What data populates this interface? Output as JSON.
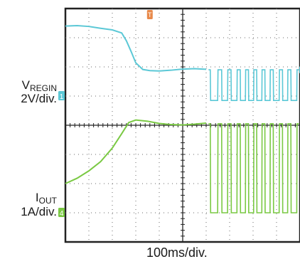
{
  "chart_data": {
    "type": "line",
    "title": "",
    "xlabel": "100ms/div.",
    "xlim": [
      0,
      1000
    ],
    "ylim": [
      -4,
      4
    ],
    "grid": true,
    "channel_markers": [
      "1",
      "4",
      "T"
    ],
    "colors": {
      "vregin": "#5bc8d6",
      "iout": "#7ac943",
      "trigger": "#e8894a",
      "grid": "#6a6a6a",
      "border": "#222222"
    },
    "series": [
      {
        "name": "V_REGIN",
        "label_main": "V",
        "label_sub": "REGIN",
        "scale": "2V/div.",
        "x": [
          0,
          50,
          100,
          150,
          200,
          240,
          260,
          280,
          300,
          330,
          360,
          400,
          450,
          500,
          550,
          600
        ],
        "y": [
          3.4,
          3.38,
          3.35,
          3.32,
          3.3,
          3.2,
          2.9,
          2.5,
          2.1,
          1.9,
          1.9,
          1.9,
          1.9,
          1.9,
          1.9,
          1.9
        ]
      },
      {
        "name": "I_OUT",
        "label_main": "I",
        "label_sub": "OUT",
        "scale": "1A/div.",
        "x": [
          0,
          50,
          100,
          150,
          200,
          240,
          270,
          300,
          350,
          400,
          450,
          500,
          550,
          600
        ],
        "y": [
          -2.0,
          -1.85,
          -1.6,
          -1.25,
          -0.75,
          -0.25,
          0.1,
          0.15,
          0.1,
          0.05,
          0.05,
          0.05,
          0.05,
          0.05
        ]
      }
    ],
    "pulse_train": {
      "x": [
        610,
        660,
        700,
        740,
        775,
        810,
        845,
        880,
        920,
        955,
        995
      ],
      "vregin_high": 1.9,
      "vregin_low": 0.85,
      "iout_high": 0.05,
      "iout_low": -3.0
    }
  }
}
